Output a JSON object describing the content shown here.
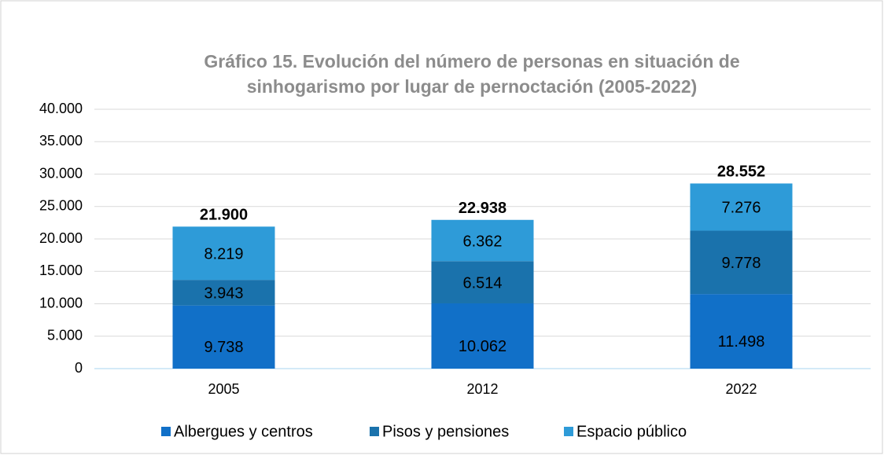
{
  "chart_data": {
    "type": "stacked_bar",
    "title": [
      "Gráfico 15. Evolución del número de personas en situación de",
      "sinhogarismo por lugar de pernoctación (2005-2022)"
    ],
    "categories": [
      "2005",
      "2012",
      "2022"
    ],
    "series": [
      {
        "name": "Albergues y centros",
        "color": "#1170c8",
        "values": [
          9738,
          10062,
          11498
        ],
        "value_labels": [
          "9.738",
          "10.062",
          "11.498"
        ]
      },
      {
        "name": "Pisos y pensiones",
        "color": "#1a72ac",
        "values": [
          3943,
          6514,
          9778
        ],
        "value_labels": [
          "3.943",
          "6.514",
          "9.778"
        ]
      },
      {
        "name": "Espacio público",
        "color": "#2e9bd8",
        "values": [
          8219,
          6362,
          7276
        ],
        "value_labels": [
          "8.219",
          "6.362",
          "7.276"
        ]
      }
    ],
    "totals": {
      "values": [
        21900,
        22938,
        28552
      ],
      "value_labels": [
        "21.900",
        "22.938",
        "28.552"
      ]
    },
    "ylim": [
      0,
      40000
    ],
    "yticks": [
      0,
      {
        "value": 5000,
        "label": "5.000"
      },
      {
        "value": 10000,
        "label": "10.000"
      },
      {
        "value": 15000,
        "label": "15.000"
      },
      {
        "value": 20000,
        "label": "20.000"
      },
      {
        "value": 25000,
        "label": "25.000"
      },
      {
        "value": 30000,
        "label": "30.000"
      },
      {
        "value": 35000,
        "label": "35.000"
      },
      {
        "value": 40000,
        "label": "40.000"
      }
    ],
    "grid": true,
    "legend": "bottom"
  }
}
